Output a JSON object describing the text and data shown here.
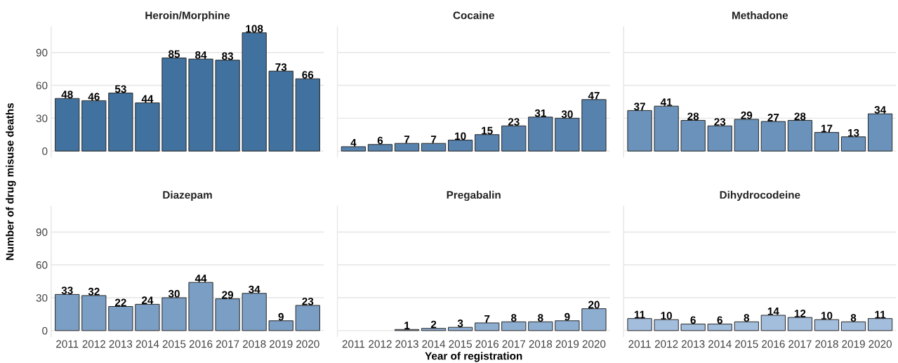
{
  "chart_data": [
    {
      "type": "bar",
      "title": "Heroin/Morphine",
      "ylabel": "Number of drug misuse deaths",
      "categories": [
        "2011",
        "2012",
        "2013",
        "2014",
        "2015",
        "2016",
        "2017",
        "2018",
        "2019",
        "2020"
      ],
      "values": [
        48,
        46,
        53,
        44,
        85,
        84,
        83,
        108,
        73,
        66
      ],
      "color": "#41729f",
      "ylim": [
        -5.4,
        113.4
      ],
      "yticks": [
        0,
        30,
        60,
        90
      ],
      "grid": "y",
      "data_labels": true,
      "tick_labels": "y"
    },
    {
      "type": "bar",
      "title": "Cocaine",
      "categories": [
        "2011",
        "2012",
        "2013",
        "2014",
        "2015",
        "2016",
        "2017",
        "2018",
        "2019",
        "2020"
      ],
      "values": [
        4,
        6,
        7,
        7,
        10,
        15,
        23,
        31,
        30,
        47
      ],
      "color": "#5782ad",
      "ylim": [
        -5.4,
        113.4
      ],
      "yticks": [
        0,
        30,
        60,
        90
      ],
      "grid": "y",
      "data_labels": true,
      "tick_labels": false
    },
    {
      "type": "bar",
      "title": "Methadone",
      "categories": [
        "2011",
        "2012",
        "2013",
        "2014",
        "2015",
        "2016",
        "2017",
        "2018",
        "2019",
        "2020"
      ],
      "values": [
        37,
        41,
        28,
        23,
        29,
        27,
        28,
        17,
        13,
        34
      ],
      "color": "#6a92ba",
      "ylim": [
        -5.4,
        113.4
      ],
      "yticks": [
        0,
        30,
        60,
        90
      ],
      "grid": "y",
      "data_labels": true,
      "tick_labels": false
    },
    {
      "type": "bar",
      "title": "Diazepam",
      "categories": [
        "2011",
        "2012",
        "2013",
        "2014",
        "2015",
        "2016",
        "2017",
        "2018",
        "2019",
        "2020"
      ],
      "values": [
        33,
        32,
        22,
        24,
        30,
        44,
        29,
        34,
        9,
        23
      ],
      "color": "#7b9fc4",
      "ylim": [
        -5.4,
        113.4
      ],
      "yticks": [
        0,
        30,
        60,
        90
      ],
      "grid": "y",
      "data_labels": true
    },
    {
      "type": "bar",
      "title": "Pregabalin",
      "xlabel": "Year of registration",
      "categories": [
        "2011",
        "2012",
        "2013",
        "2014",
        "2015",
        "2016",
        "2017",
        "2018",
        "2019",
        "2020"
      ],
      "values": [
        null,
        null,
        1,
        2,
        3,
        7,
        8,
        8,
        9,
        20
      ],
      "color": "#8eaed1",
      "ylim": [
        -5.4,
        113.4
      ],
      "yticks": [
        0,
        30,
        60,
        90
      ],
      "grid": "y",
      "data_labels": true,
      "tick_labels": "x"
    },
    {
      "type": "bar",
      "title": "Dihydrocodeine",
      "categories": [
        "2011",
        "2012",
        "2013",
        "2014",
        "2015",
        "2016",
        "2017",
        "2018",
        "2019",
        "2020"
      ],
      "values": [
        11,
        10,
        6,
        6,
        8,
        14,
        12,
        10,
        8,
        11
      ],
      "color": "#a3bddc",
      "ylim": [
        -5.4,
        113.4
      ],
      "yticks": [
        0,
        30,
        60,
        90
      ],
      "grid": "y",
      "data_labels": true,
      "tick_labels": "x"
    }
  ]
}
